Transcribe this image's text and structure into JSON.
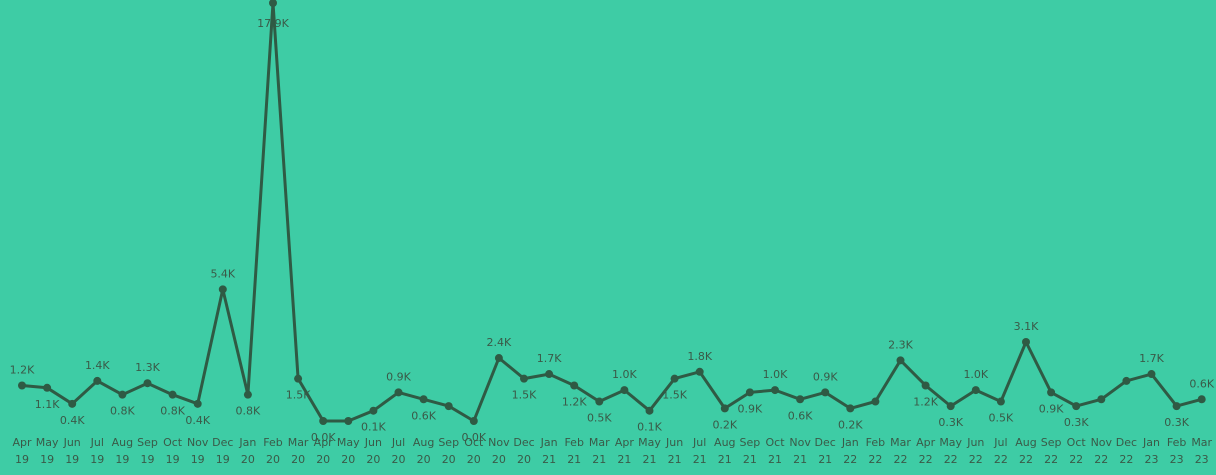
{
  "chart_data": {
    "type": "line",
    "title": "",
    "xlabel": "",
    "ylabel": "",
    "grid": false,
    "colors": {
      "background": "#3ecca5",
      "line": "#2f5a44",
      "text": "#3a5a48"
    },
    "categories": [
      [
        "Apr",
        "19"
      ],
      [
        "May",
        "19"
      ],
      [
        "Jun",
        "19"
      ],
      [
        "Jul",
        "19"
      ],
      [
        "Aug",
        "19"
      ],
      [
        "Sep",
        "19"
      ],
      [
        "Oct",
        "19"
      ],
      [
        "Nov",
        "19"
      ],
      [
        "Dec",
        "19"
      ],
      [
        "Jan",
        "20"
      ],
      [
        "Feb",
        "20"
      ],
      [
        "Mar",
        "20"
      ],
      [
        "Apr",
        "20"
      ],
      [
        "May",
        "20"
      ],
      [
        "Jun",
        "20"
      ],
      [
        "Jul",
        "20"
      ],
      [
        "Aug",
        "20"
      ],
      [
        "Sep",
        "20"
      ],
      [
        "Oct",
        "20"
      ],
      [
        "Nov",
        "20"
      ],
      [
        "Dec",
        "20"
      ],
      [
        "Jan",
        "21"
      ],
      [
        "Feb",
        "21"
      ],
      [
        "Mar",
        "21"
      ],
      [
        "Apr",
        "21"
      ],
      [
        "May",
        "21"
      ],
      [
        "Jun",
        "21"
      ],
      [
        "Jul",
        "21"
      ],
      [
        "Aug",
        "21"
      ],
      [
        "Sep",
        "21"
      ],
      [
        "Oct",
        "21"
      ],
      [
        "Nov",
        "21"
      ],
      [
        "Dec",
        "21"
      ],
      [
        "Jan",
        "22"
      ],
      [
        "Feb",
        "22"
      ],
      [
        "Mar",
        "22"
      ],
      [
        "Apr",
        "22"
      ],
      [
        "May",
        "22"
      ],
      [
        "Jun",
        "22"
      ],
      [
        "Jul",
        "22"
      ],
      [
        "Aug",
        "22"
      ],
      [
        "Sep",
        "22"
      ],
      [
        "Oct",
        "22"
      ],
      [
        "Nov",
        "22"
      ],
      [
        "Dec",
        "22"
      ],
      [
        "Jan",
        "23"
      ],
      [
        "Feb",
        "23"
      ],
      [
        "Mar",
        "23"
      ]
    ],
    "values": [
      1.2,
      1.1,
      0.4,
      1.4,
      0.8,
      1.3,
      0.8,
      0.4,
      5.4,
      0.8,
      17.9,
      1.5,
      0.0,
      0.0,
      0.1,
      0.9,
      0.6,
      0.3,
      0.0,
      2.4,
      1.5,
      1.7,
      1.2,
      0.5,
      1.0,
      0.1,
      1.5,
      1.8,
      0.2,
      0.9,
      1.0,
      0.6,
      0.9,
      0.2,
      0.5,
      2.3,
      1.2,
      0.3,
      1.0,
      0.5,
      3.1,
      0.9,
      0.3,
      0.6,
      1.4,
      1.7,
      0.3,
      0.6
    ],
    "data_labels": [
      "1.2K",
      "1.1K",
      "0.4K",
      "1.4K",
      "0.8K",
      "1.3K",
      "0.8K",
      "0.4K",
      "5.4K",
      "0.8K",
      "17.9K",
      "1.5K",
      "0.0K",
      "",
      "0.1K",
      "0.9K",
      "0.6K",
      "",
      "0.0K",
      "2.4K",
      "1.5K",
      "1.7K",
      "1.2K",
      "0.5K",
      "1.0K",
      "0.1K",
      "1.5K",
      "1.8K",
      "0.2K",
      "0.9K",
      "1.0K",
      "0.6K",
      "0.9K",
      "0.2K",
      "",
      "2.3K",
      "1.2K",
      "0.3K",
      "1.0K",
      "0.5K",
      "3.1K",
      "0.9K",
      "0.3K",
      "",
      "",
      "1.7K",
      "0.3K",
      "0.6K"
    ],
    "ylim": [
      0,
      18
    ]
  }
}
